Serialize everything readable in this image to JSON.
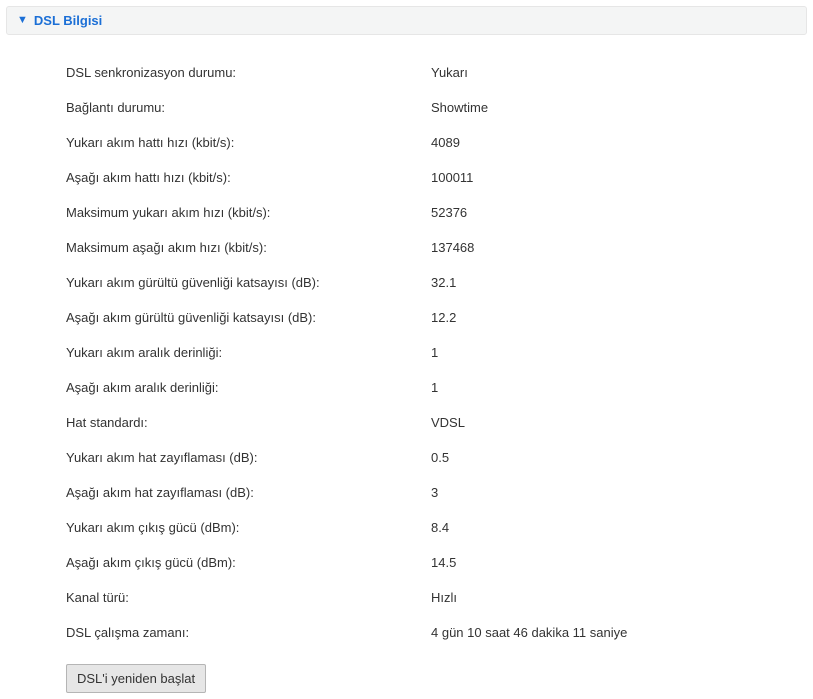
{
  "panel": {
    "title": "DSL Bilgisi",
    "restart_label": "DSL'i yeniden başlat",
    "rows": [
      {
        "label": "DSL senkronizasyon durumu:",
        "value": "Yukarı"
      },
      {
        "label": "Bağlantı durumu:",
        "value": "Showtime"
      },
      {
        "label": "Yukarı akım hattı hızı (kbit/s):",
        "value": "4089"
      },
      {
        "label": "Aşağı akım hattı hızı (kbit/s):",
        "value": "100011"
      },
      {
        "label": "Maksimum yukarı akım hızı (kbit/s):",
        "value": "52376"
      },
      {
        "label": "Maksimum aşağı akım hızı (kbit/s):",
        "value": "137468"
      },
      {
        "label": "Yukarı akım gürültü güvenliği katsayısı (dB):",
        "value": "32.1"
      },
      {
        "label": "Aşağı akım gürültü güvenliği katsayısı (dB):",
        "value": "12.2"
      },
      {
        "label": "Yukarı akım aralık derinliği:",
        "value": "1"
      },
      {
        "label": "Aşağı akım aralık derinliği:",
        "value": "1"
      },
      {
        "label": "Hat standardı:",
        "value": "VDSL"
      },
      {
        "label": "Yukarı akım hat zayıflaması (dB):",
        "value": "0.5"
      },
      {
        "label": "Aşağı akım hat zayıflaması (dB):",
        "value": "3"
      },
      {
        "label": "Yukarı akım çıkış gücü (dBm):",
        "value": "8.4"
      },
      {
        "label": "Aşağı akım çıkış gücü (dBm):",
        "value": "14.5"
      },
      {
        "label": "Kanal türü:",
        "value": "Hızlı"
      },
      {
        "label": "DSL çalışma zamanı:",
        "value": "4 gün 10 saat 46 dakika 11 saniye"
      }
    ]
  },
  "colors": {
    "accent": "#1b6fd6",
    "header_bg": "#f4f5f5",
    "header_border": "#e6e6e6",
    "text": "#333333",
    "button_bg": "#e6e6e6",
    "button_border": "#b5b5b5"
  }
}
